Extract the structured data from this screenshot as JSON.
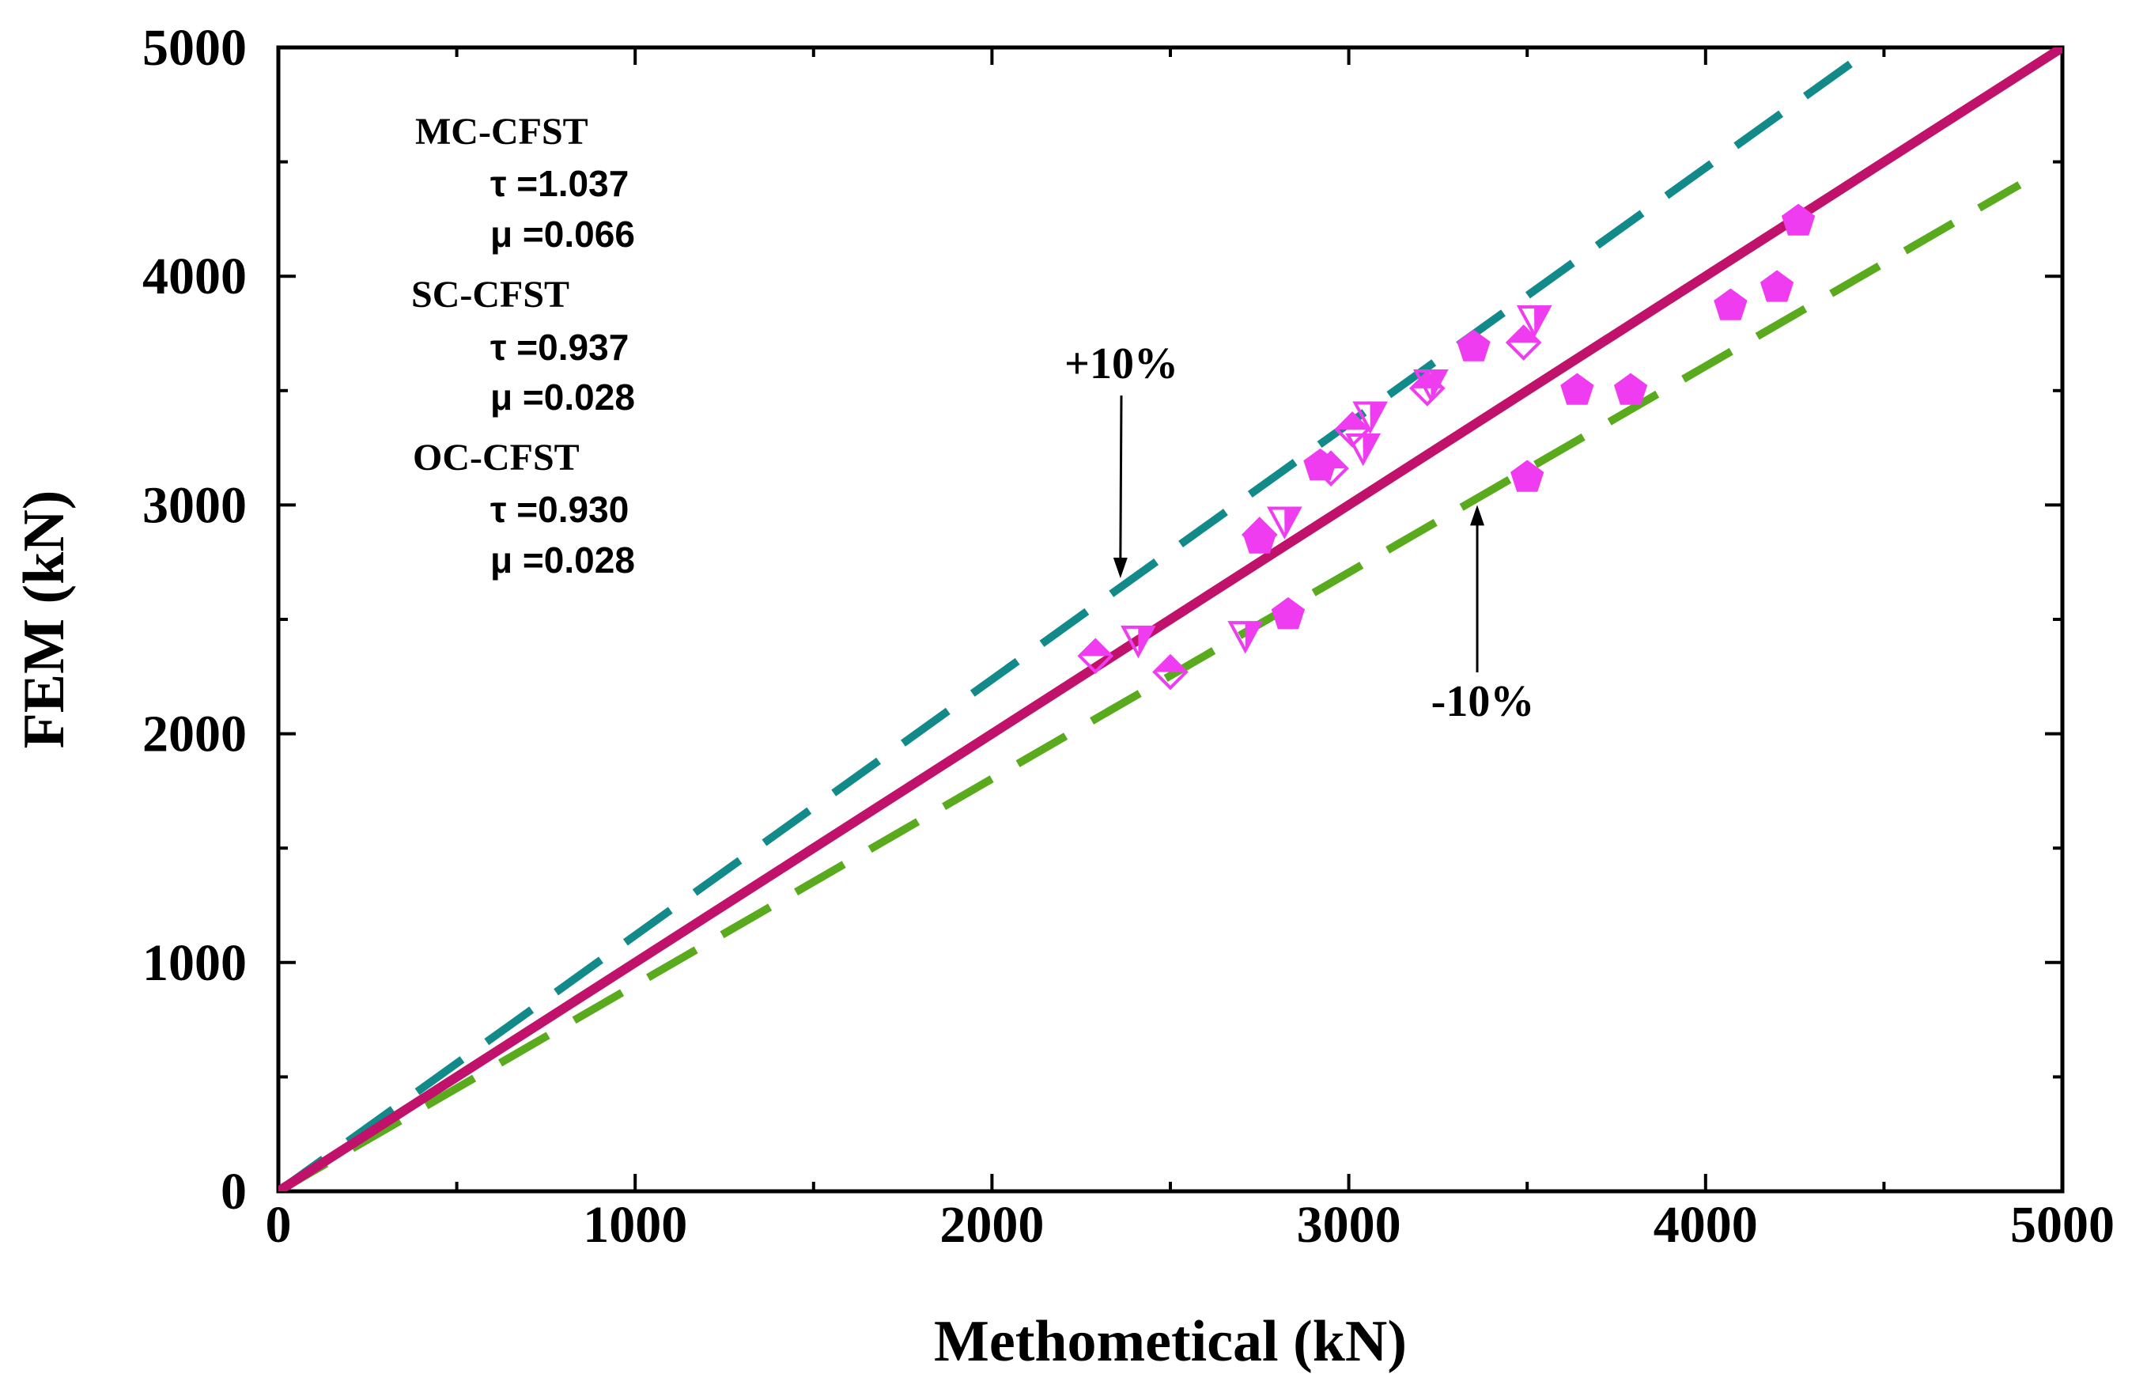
{
  "chart_data": {
    "type": "scatter",
    "title": "",
    "xlabel": "Methometical (kN)",
    "ylabel": "FEM (kN)",
    "xlim": [
      0,
      5000
    ],
    "ylim": [
      0,
      5000
    ],
    "xticks": [
      "0",
      "1000",
      "2000",
      "3000",
      "4000",
      "5000"
    ],
    "yticks": [
      "0",
      "1000",
      "2000",
      "3000",
      "4000",
      "5000"
    ],
    "grid": false,
    "lines": [
      {
        "name": "y = x",
        "color": "#c0116b",
        "style": "solid",
        "x": [
          0,
          5000
        ],
        "y": [
          0,
          5000
        ]
      },
      {
        "name": "+10%",
        "color": "#138a8a",
        "style": "dashed",
        "x": [
          0,
          4470
        ],
        "y": [
          0,
          5000
        ]
      },
      {
        "name": "-10%",
        "color": "#5aaa1e",
        "style": "dashed",
        "x": [
          0,
          4880
        ],
        "y": [
          0,
          4400
        ]
      }
    ],
    "series": [
      {
        "name": "MC-CFST",
        "marker": "pentagon-filled",
        "color": "#f03cf0",
        "points": [
          [
            3350,
            3690
          ],
          [
            3640,
            3500
          ],
          [
            3790,
            3500
          ],
          [
            4070,
            3870
          ],
          [
            4200,
            3950
          ],
          [
            4260,
            4240
          ],
          [
            3500,
            3120
          ],
          [
            2830,
            2520
          ],
          [
            2750,
            2850
          ],
          [
            2920,
            3170
          ]
        ]
      },
      {
        "name": "SC-CFST",
        "marker": "triangle-down-half",
        "color": "#f03cf0",
        "points": [
          [
            2410,
            2410
          ],
          [
            2710,
            2430
          ],
          [
            2820,
            2930
          ],
          [
            3040,
            3250
          ],
          [
            3060,
            3390
          ],
          [
            3230,
            3530
          ],
          [
            3520,
            3810
          ]
        ]
      },
      {
        "name": "OC-CFST",
        "marker": "diamond-half",
        "color": "#f03cf0",
        "points": [
          [
            2290,
            2340
          ],
          [
            2500,
            2270
          ],
          [
            2950,
            3160
          ],
          [
            3010,
            3330
          ],
          [
            3220,
            3510
          ],
          [
            3490,
            3710
          ],
          [
            2750,
            2870
          ]
        ]
      }
    ],
    "annotations": [
      {
        "text": "+10%",
        "target": [
          2360,
          2680
        ]
      },
      {
        "text": "-10%",
        "target": [
          3360,
          3000
        ]
      }
    ],
    "stats": [
      {
        "name": "MC-CFST",
        "tau": "τ =1.037",
        "mu": "μ =0.066"
      },
      {
        "name": "SC-CFST",
        "tau": "τ =0.937",
        "mu": "μ =0.028"
      },
      {
        "name": "OC-CFST",
        "tau": "τ =0.930",
        "mu": "μ =0.028"
      }
    ]
  }
}
